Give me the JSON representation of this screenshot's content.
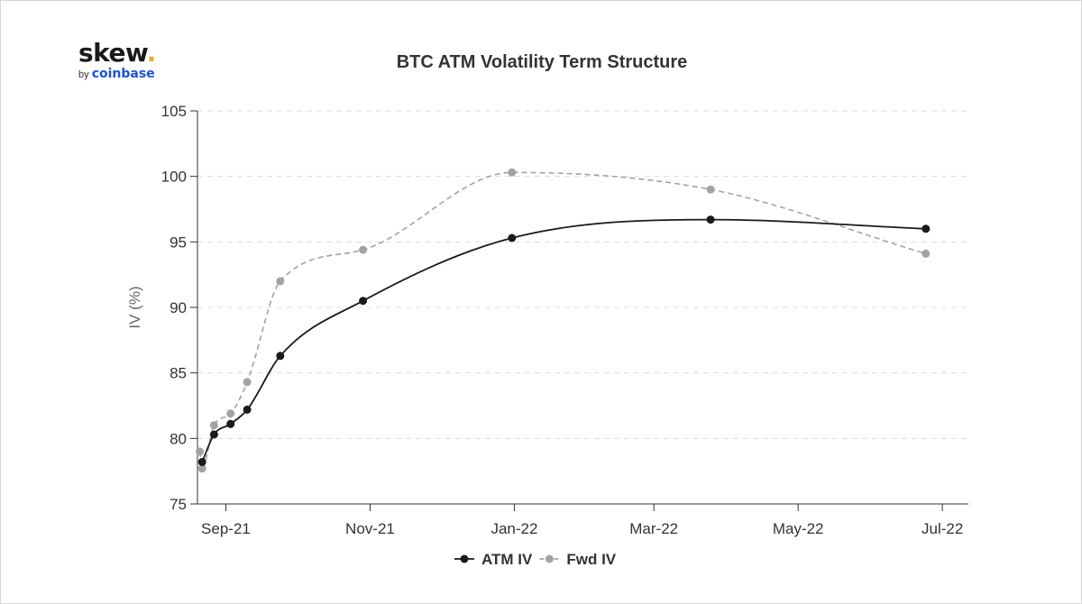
{
  "logo": {
    "main": "skew",
    "dot": ".",
    "by": "by",
    "brand": "coinbase"
  },
  "chart_data": {
    "type": "line",
    "title": "BTC ATM Volatility Term Structure",
    "ylabel": "IV (%)",
    "xlabel": "",
    "ylim": [
      75,
      105
    ],
    "yticks": [
      75,
      80,
      85,
      90,
      95,
      100,
      105
    ],
    "xlim": [
      "2021-08-20",
      "2022-07-12"
    ],
    "xticks": [
      {
        "date": "2021-09-01",
        "label": "Sep-21"
      },
      {
        "date": "2021-11-01",
        "label": "Nov-21"
      },
      {
        "date": "2022-01-01",
        "label": "Jan-22"
      },
      {
        "date": "2022-03-01",
        "label": "Mar-22"
      },
      {
        "date": "2022-05-01",
        "label": "May-22"
      },
      {
        "date": "2022-07-01",
        "label": "Jul-22"
      }
    ],
    "grid": "horizontal",
    "legend": "bottom",
    "series": [
      {
        "name": "ATM IV",
        "color": "#1a1a1a",
        "style": "solid",
        "points": [
          {
            "x": "2021-08-22",
            "y": 78.2
          },
          {
            "x": "2021-08-27",
            "y": 80.3
          },
          {
            "x": "2021-09-03",
            "y": 81.1
          },
          {
            "x": "2021-09-10",
            "y": 82.2
          },
          {
            "x": "2021-09-24",
            "y": 86.3
          },
          {
            "x": "2021-10-29",
            "y": 90.5
          },
          {
            "x": "2021-12-31",
            "y": 95.3
          },
          {
            "x": "2022-03-25",
            "y": 96.7
          },
          {
            "x": "2022-06-24",
            "y": 96.0
          }
        ]
      },
      {
        "name": "Fwd IV",
        "color": "#a0a4a8",
        "style": "dashed",
        "points": [
          {
            "x": "2021-08-21",
            "y": 79.0
          },
          {
            "x": "2021-08-22",
            "y": 77.7
          },
          {
            "x": "2021-08-27",
            "y": 81.0
          },
          {
            "x": "2021-09-03",
            "y": 81.9
          },
          {
            "x": "2021-09-10",
            "y": 84.3
          },
          {
            "x": "2021-09-24",
            "y": 92.0
          },
          {
            "x": "2021-10-29",
            "y": 94.4
          },
          {
            "x": "2021-12-31",
            "y": 100.3
          },
          {
            "x": "2022-03-25",
            "y": 99.0
          },
          {
            "x": "2022-06-24",
            "y": 94.1
          }
        ]
      }
    ]
  }
}
